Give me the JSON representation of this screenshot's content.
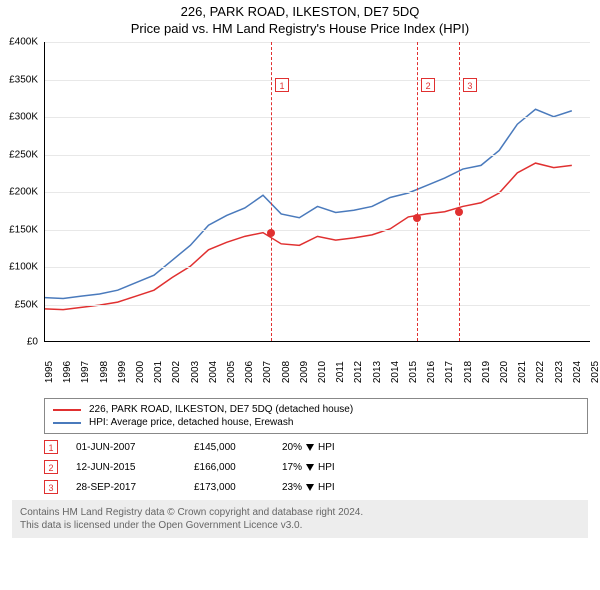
{
  "title": {
    "line1": "226, PARK ROAD, ILKESTON, DE7 5DQ",
    "line2": "Price paid vs. HM Land Registry's House Price Index (HPI)"
  },
  "chart": {
    "type": "line",
    "background_color": "#ffffff",
    "grid_color": "#e8e8e8",
    "plot_border_color": "#000000",
    "x_years": [
      1995,
      1996,
      1997,
      1998,
      1999,
      2000,
      2001,
      2002,
      2003,
      2004,
      2005,
      2006,
      2007,
      2008,
      2009,
      2010,
      2011,
      2012,
      2013,
      2014,
      2015,
      2016,
      2017,
      2018,
      2019,
      2020,
      2021,
      2022,
      2023,
      2024,
      2025
    ],
    "y_min": 0,
    "y_max": 400000,
    "y_tick_step": 50000,
    "y_ticks": [
      "£0",
      "£50K",
      "£100K",
      "£150K",
      "£200K",
      "£250K",
      "£300K",
      "£350K",
      "£400K"
    ],
    "axis_fontsize": 10,
    "axis_font_color": "#000000",
    "series": {
      "property": {
        "label": "226, PARK ROAD, ILKESTON, DE7 5DQ (detached house)",
        "color": "#e03030",
        "line_width": 1.5,
        "points": [
          [
            1995,
            43000
          ],
          [
            1996,
            42000
          ],
          [
            1997,
            45000
          ],
          [
            1998,
            48000
          ],
          [
            1999,
            52000
          ],
          [
            2000,
            60000
          ],
          [
            2001,
            68000
          ],
          [
            2002,
            85000
          ],
          [
            2003,
            100000
          ],
          [
            2004,
            122000
          ],
          [
            2005,
            132000
          ],
          [
            2006,
            140000
          ],
          [
            2007,
            145000
          ],
          [
            2008,
            130000
          ],
          [
            2009,
            128000
          ],
          [
            2010,
            140000
          ],
          [
            2011,
            135000
          ],
          [
            2012,
            138000
          ],
          [
            2013,
            142000
          ],
          [
            2014,
            150000
          ],
          [
            2015,
            166000
          ],
          [
            2016,
            170000
          ],
          [
            2017,
            173000
          ],
          [
            2018,
            180000
          ],
          [
            2019,
            185000
          ],
          [
            2020,
            198000
          ],
          [
            2021,
            225000
          ],
          [
            2022,
            238000
          ],
          [
            2023,
            232000
          ],
          [
            2024,
            235000
          ]
        ]
      },
      "hpi": {
        "label": "HPI: Average price, detached house, Erewash",
        "color": "#4a7abc",
        "line_width": 1.5,
        "points": [
          [
            1995,
            58000
          ],
          [
            1996,
            57000
          ],
          [
            1997,
            60000
          ],
          [
            1998,
            63000
          ],
          [
            1999,
            68000
          ],
          [
            2000,
            78000
          ],
          [
            2001,
            88000
          ],
          [
            2002,
            108000
          ],
          [
            2003,
            128000
          ],
          [
            2004,
            155000
          ],
          [
            2005,
            168000
          ],
          [
            2006,
            178000
          ],
          [
            2007,
            195000
          ],
          [
            2008,
            170000
          ],
          [
            2009,
            165000
          ],
          [
            2010,
            180000
          ],
          [
            2011,
            172000
          ],
          [
            2012,
            175000
          ],
          [
            2013,
            180000
          ],
          [
            2014,
            192000
          ],
          [
            2015,
            198000
          ],
          [
            2016,
            208000
          ],
          [
            2017,
            218000
          ],
          [
            2018,
            230000
          ],
          [
            2019,
            235000
          ],
          [
            2020,
            255000
          ],
          [
            2021,
            290000
          ],
          [
            2022,
            310000
          ],
          [
            2023,
            300000
          ],
          [
            2024,
            308000
          ]
        ]
      }
    },
    "vertical_markers": [
      {
        "year": 2007.42,
        "label": "1"
      },
      {
        "year": 2015.45,
        "label": "2"
      },
      {
        "year": 2017.74,
        "label": "3"
      }
    ],
    "marker_color": "#e03030",
    "sale_dots": [
      {
        "year": 2007.42,
        "price": 145000
      },
      {
        "year": 2015.45,
        "price": 166000
      },
      {
        "year": 2017.74,
        "price": 173000
      }
    ],
    "dot_color": "#e03030"
  },
  "legend": {
    "border_color": "#888888",
    "fontsize": 10
  },
  "events": {
    "columns": [
      "marker",
      "date",
      "price",
      "diff",
      "diff_label"
    ],
    "diff_label_suffix": "HPI",
    "rows": [
      {
        "marker": "1",
        "date": "01-JUN-2007",
        "price": "£145,000",
        "diff": "20%"
      },
      {
        "marker": "2",
        "date": "12-JUN-2015",
        "price": "£166,000",
        "diff": "17%"
      },
      {
        "marker": "3",
        "date": "28-SEP-2017",
        "price": "£173,000",
        "diff": "23%"
      }
    ],
    "arrow_color": "#000000"
  },
  "footer": {
    "line1": "Contains HM Land Registry data © Crown copyright and database right 2024.",
    "line2": "This data is licensed under the Open Government Licence v3.0.",
    "background_color": "#ededed",
    "text_color": "#666666",
    "fontsize": 10
  }
}
